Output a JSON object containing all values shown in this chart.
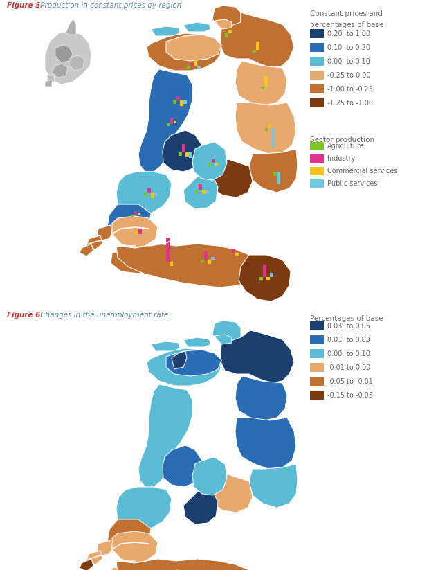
{
  "fig5_title_bold": "Figure 5.",
  "fig5_title_rest": " Production in constant prices by region",
  "fig6_title_bold": "Figure 6.",
  "fig6_title_rest": " Changes in the unemployment rate",
  "background_color": "#ffffff",
  "fig5_legend1_title1": "Constant prices and",
  "fig5_legend1_title2": "percentages of base",
  "fig5_legend1_items": [
    {
      "color": "#1b3f6e",
      "label": "0.20  to 1.00"
    },
    {
      "color": "#2b6db5",
      "label": "0.10  to 0.20"
    },
    {
      "color": "#5bbcd6",
      "label": "0.00  to 0.10"
    },
    {
      "color": "#e8a96e",
      "label": "-0.25 to 0.00"
    },
    {
      "color": "#c07030",
      "label": "-1.00 to -0.25"
    },
    {
      "color": "#7b3a10",
      "label": "-1.25 to -1.00"
    }
  ],
  "fig5_legend2_title": "Sector production",
  "fig5_legend2_items": [
    {
      "color": "#7ec225",
      "label": "Agriculture"
    },
    {
      "color": "#e0338a",
      "label": "Industry"
    },
    {
      "color": "#f5c518",
      "label": "Commercial services"
    },
    {
      "color": "#70c8e2",
      "label": "Public services"
    }
  ],
  "fig6_legend_title": "Percentages of base",
  "fig6_legend_items": [
    {
      "color": "#1b3f6e",
      "label": "0.03  to 0.05"
    },
    {
      "color": "#2b6db5",
      "label": "0.01  to 0.03"
    },
    {
      "color": "#5bbcd6",
      "label": "0.00  to 0.10"
    },
    {
      "color": "#e8a96e",
      "label": "-0.01 to 0.00"
    },
    {
      "color": "#c07030",
      "label": "-0.05 to -0.01"
    },
    {
      "color": "#7b3a10",
      "label": "-0.15 to -0.05"
    }
  ],
  "title_color": "#cc3333",
  "rest_color": "#5a8fa8",
  "label_color": "#666666"
}
